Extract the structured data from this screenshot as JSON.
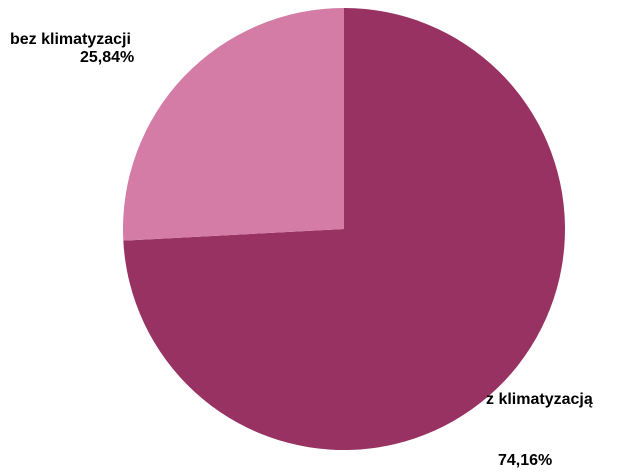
{
  "chart_data": {
    "type": "pie",
    "slices": [
      {
        "label": "z klimatyzacją",
        "value": 74.16,
        "display": "74,16%",
        "color": "#983262"
      },
      {
        "label": "bez klimatyzacji",
        "value": 25.84,
        "display": "25,84%",
        "color": "#d47ca6"
      }
    ],
    "start_angle_deg": 0,
    "direction": "clockwise",
    "legend": "none",
    "data_labels": "outside"
  }
}
